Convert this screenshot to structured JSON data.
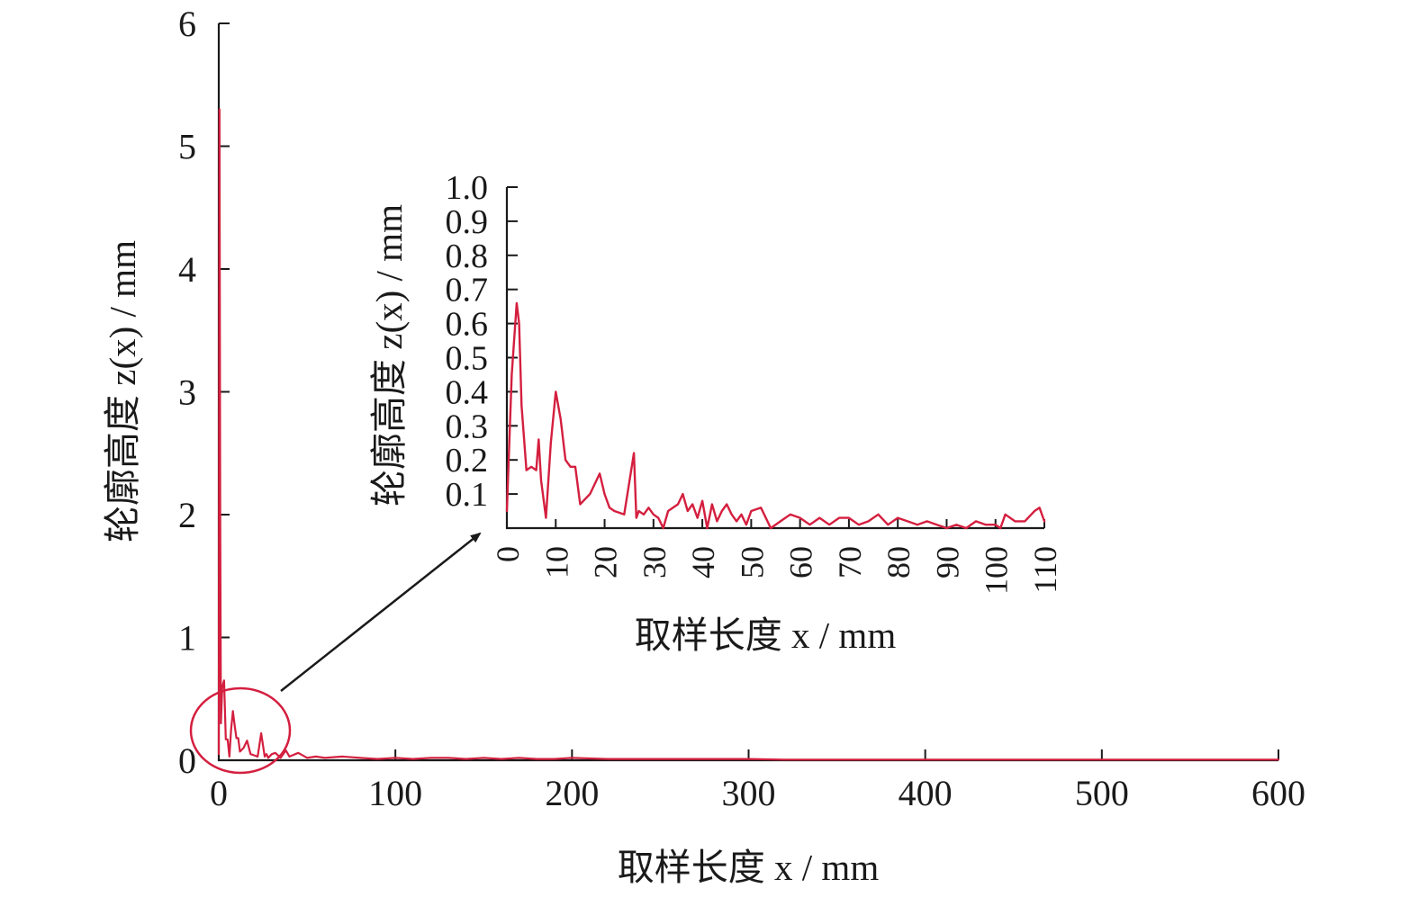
{
  "colors": {
    "series": "#d41f3f",
    "axis": "#1a1a1a"
  },
  "chart_data": [
    {
      "type": "line",
      "title": "",
      "xlabel": "取样长度 x / mm",
      "ylabel": "轮廓高度 z(x) / mm",
      "xlim": [
        0,
        600
      ],
      "ylim": [
        0,
        6
      ],
      "xticks": [
        0,
        100,
        200,
        300,
        400,
        500,
        600
      ],
      "yticks": [
        0,
        1,
        2,
        3,
        4,
        5,
        6
      ],
      "series": [
        {
          "x": [
            0,
            0.4,
            0.8,
            1.2,
            2,
            3,
            4,
            5,
            6,
            7,
            8,
            9,
            10,
            11,
            12,
            14,
            16,
            18,
            20,
            22,
            24,
            26,
            27,
            28,
            30,
            32,
            35,
            38,
            40,
            45,
            50,
            55,
            60,
            70,
            80,
            90,
            100,
            110,
            120,
            130,
            140,
            150,
            160,
            170,
            180,
            190,
            200,
            220,
            240,
            260,
            280,
            300,
            320,
            340,
            360,
            380,
            400,
            420,
            440,
            460,
            480,
            500,
            520,
            540,
            560,
            580,
            600
          ],
          "y": [
            0.05,
            5.3,
            2.0,
            0.3,
            0.6,
            0.65,
            0.17,
            0.17,
            0.03,
            0.25,
            0.4,
            0.28,
            0.18,
            0.18,
            0.07,
            0.1,
            0.16,
            0.05,
            0.04,
            0.03,
            0.22,
            0.03,
            0.05,
            0.02,
            0.05,
            0.06,
            0.02,
            0.08,
            0.03,
            0.06,
            0.02,
            0.03,
            0.02,
            0.03,
            0.02,
            0.01,
            0.02,
            0.01,
            0.02,
            0.02,
            0.01,
            0.02,
            0.01,
            0.02,
            0.01,
            0.01,
            0.02,
            0.01,
            0.01,
            0.01,
            0.01,
            0.01,
            0.005,
            0.005,
            0.005,
            0.005,
            0.005,
            0.005,
            0.005,
            0.005,
            0.005,
            0.005,
            0.005,
            0.005,
            0.005,
            0.005,
            0.005
          ]
        }
      ],
      "annotations": [
        "circle-highlight-near-origin",
        "arrow-to-inset"
      ]
    },
    {
      "type": "line",
      "title": "",
      "xlabel": "取样长度 x / mm",
      "ylabel": "轮廓高度 z(x) / mm",
      "xlim": [
        0,
        110
      ],
      "ylim": [
        0,
        1.0
      ],
      "xticks": [
        0,
        10,
        20,
        30,
        40,
        50,
        60,
        70,
        80,
        90,
        100,
        110
      ],
      "yticks": [
        0.1,
        0.2,
        0.3,
        0.4,
        0.5,
        0.6,
        0.7,
        0.8,
        0.9,
        1.0
      ],
      "series": [
        {
          "x": [
            0,
            1,
            2,
            2.5,
            3,
            4,
            5,
            6,
            6.5,
            7,
            8,
            9,
            10,
            11,
            12,
            13,
            14,
            15,
            17,
            19,
            20,
            21,
            22,
            24,
            26,
            26.5,
            27,
            28,
            29,
            30,
            31,
            32,
            33,
            34,
            35,
            36,
            37,
            38,
            39,
            40,
            41,
            42,
            43,
            44,
            45,
            46,
            47,
            48,
            49,
            50,
            52,
            54,
            56,
            58,
            60,
            62,
            64,
            66,
            68,
            70,
            72,
            74,
            76,
            78,
            80,
            82,
            84,
            86,
            88,
            90,
            92,
            94,
            96,
            98,
            100,
            101,
            102,
            104,
            106,
            108,
            109,
            110
          ],
          "y": [
            0.05,
            0.45,
            0.66,
            0.6,
            0.36,
            0.17,
            0.18,
            0.17,
            0.26,
            0.14,
            0.03,
            0.25,
            0.4,
            0.32,
            0.2,
            0.18,
            0.18,
            0.07,
            0.1,
            0.16,
            0.1,
            0.06,
            0.05,
            0.04,
            0.22,
            0.03,
            0.05,
            0.04,
            0.06,
            0.04,
            0.03,
            0.0,
            0.05,
            0.06,
            0.07,
            0.1,
            0.05,
            0.07,
            0.03,
            0.08,
            0.0,
            0.07,
            0.02,
            0.05,
            0.07,
            0.04,
            0.02,
            0.04,
            0.01,
            0.05,
            0.06,
            0.0,
            0.02,
            0.04,
            0.03,
            0.01,
            0.03,
            0.01,
            0.03,
            0.03,
            0.01,
            0.02,
            0.04,
            0.01,
            0.03,
            0.02,
            0.01,
            0.02,
            0.01,
            0.0,
            0.01,
            0.0,
            0.02,
            0.01,
            0.01,
            0.0,
            0.04,
            0.02,
            0.02,
            0.05,
            0.06,
            0.02
          ]
        }
      ]
    }
  ]
}
